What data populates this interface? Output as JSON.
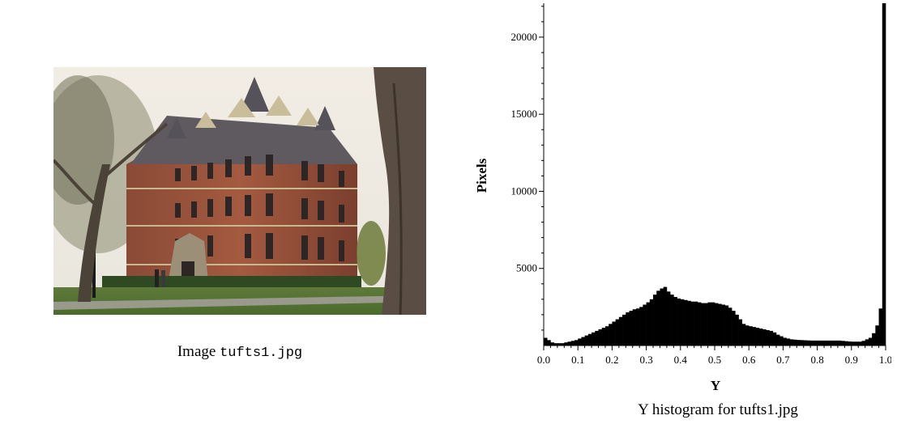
{
  "image_caption": {
    "prefix": "Image",
    "filename": "tufts1.jpg"
  },
  "chart_caption": "Y histogram for tufts1.jpg",
  "chart_data": {
    "type": "bar",
    "xlabel": "Y",
    "ylabel": "Pixels",
    "xlim": [
      0.0,
      1.0
    ],
    "ylim": [
      0,
      22200
    ],
    "x_ticks": [
      "0.0",
      "0.1",
      "0.2",
      "0.3",
      "0.4",
      "0.5",
      "0.6",
      "0.7",
      "0.8",
      "0.9",
      "1.0"
    ],
    "y_ticks": [
      5000,
      10000,
      15000,
      20000
    ],
    "y_tick_labels": [
      "5000",
      "10000",
      "15000",
      "20000"
    ],
    "bin_width": 0.01,
    "values": [
      500,
      350,
      200,
      150,
      150,
      150,
      200,
      250,
      300,
      350,
      450,
      550,
      650,
      750,
      850,
      950,
      1050,
      1150,
      1250,
      1400,
      1550,
      1700,
      1850,
      2000,
      2150,
      2250,
      2350,
      2400,
      2500,
      2650,
      2800,
      3000,
      3300,
      3550,
      3700,
      3800,
      3500,
      3300,
      3150,
      3050,
      3000,
      2950,
      2900,
      2850,
      2850,
      2800,
      2750,
      2750,
      2800,
      2800,
      2750,
      2700,
      2650,
      2600,
      2450,
      2250,
      2000,
      1700,
      1400,
      1300,
      1250,
      1200,
      1150,
      1100,
      1050,
      1000,
      950,
      850,
      700,
      600,
      500,
      450,
      400,
      380,
      360,
      350,
      340,
      330,
      320,
      320,
      320,
      320,
      320,
      320,
      320,
      320,
      320,
      300,
      280,
      260,
      250,
      250,
      250,
      300,
      400,
      500,
      800,
      1300,
      2400,
      22200
    ]
  }
}
